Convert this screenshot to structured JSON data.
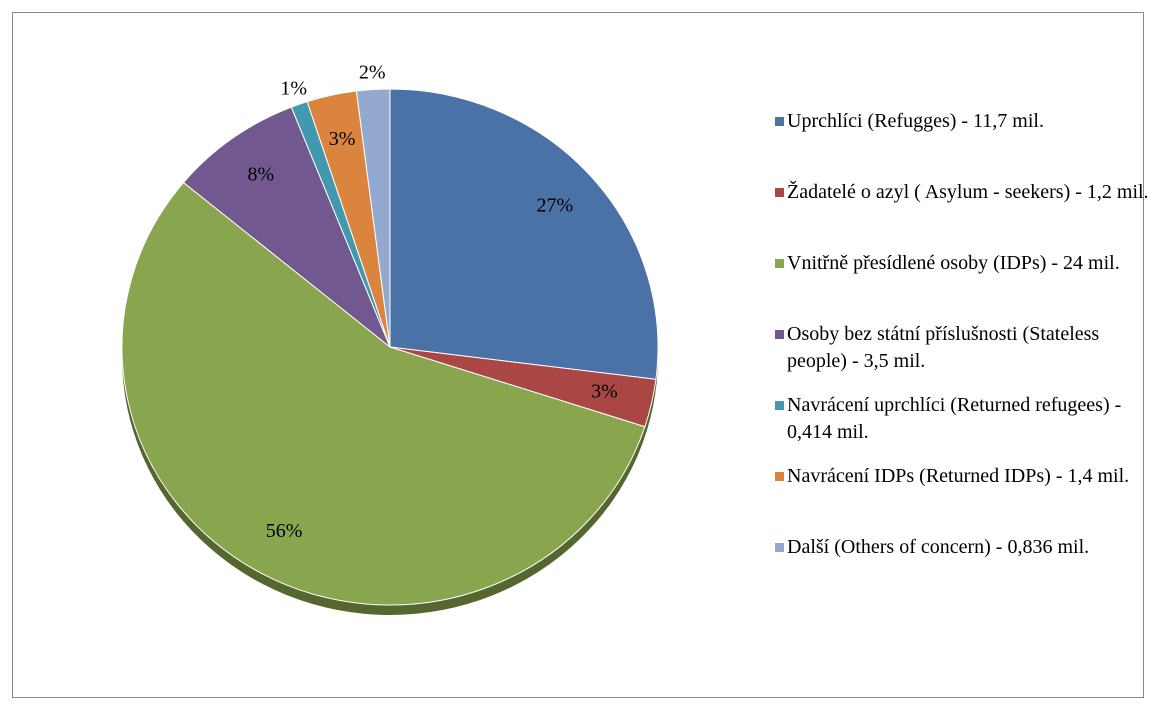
{
  "chart_data": {
    "type": "pie",
    "categories": [
      "Uprchlíci (Refugges) - 11,7 mil.",
      "Žadatelé o azyl ( Asylum - seekers) - 1,2 mil.",
      "Vnitřně přesídlené osoby (IDPs) - 24 mil.",
      "Osoby bez státní příslušnosti (Stateless people) - 3,5 mil.",
      "Navrácení uprchlíci (Returned refugees) - 0,414 mil.",
      "Navrácení IDPs (Returned IDPs) - 1,4 mil.",
      "Další (Others of concern) - 0,836 mil."
    ],
    "values": [
      27,
      3,
      56,
      8,
      1,
      3,
      2
    ],
    "value_labels": [
      "27%",
      "3%",
      "56%",
      "8%",
      "1%",
      "3%",
      "2%"
    ],
    "colors": [
      "#4a72a6",
      "#aa4643",
      "#89a54e",
      "#71588f",
      "#4198af",
      "#db843d",
      "#93a9cf"
    ],
    "legend": "right"
  }
}
